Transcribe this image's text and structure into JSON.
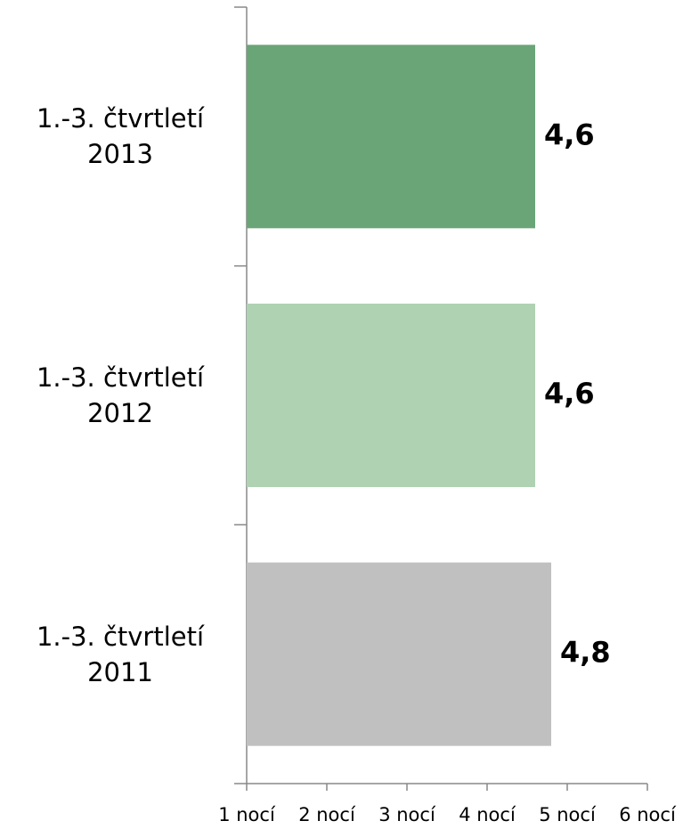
{
  "chart_data": {
    "type": "hbar",
    "categories": [
      "1.-3. čtvrtletí 2013",
      "1.-3. čtvrtletí 2012",
      "1.-3. čtvrtletí 2011"
    ],
    "values": [
      4.6,
      4.6,
      4.8
    ],
    "value_labels": [
      "4,6",
      "4,6",
      "4,8"
    ],
    "colors": [
      "#6aa577",
      "#afd2b2",
      "#c0c0c0"
    ],
    "xlim": [
      1,
      6
    ],
    "xticks": [
      {
        "value": 1,
        "label": "1 nocí"
      },
      {
        "value": 2,
        "label": "2 nocí"
      },
      {
        "value": 3,
        "label": "3 nocí"
      },
      {
        "value": 4,
        "label": "4 nocí"
      },
      {
        "value": 5,
        "label": "5 nocí"
      },
      {
        "value": 6,
        "label": "6 nocí"
      }
    ],
    "grid": false
  }
}
